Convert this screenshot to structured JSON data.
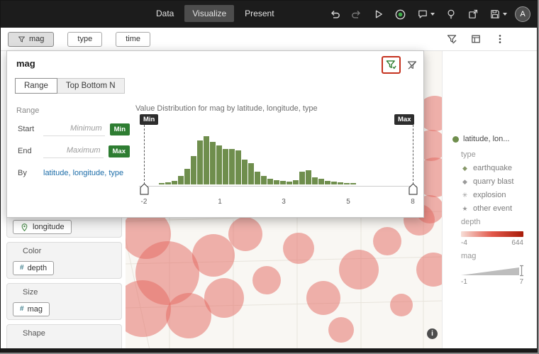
{
  "topbar": {
    "menu": [
      {
        "label": "Data"
      },
      {
        "label": "Visualize"
      },
      {
        "label": "Present"
      }
    ],
    "avatar_label": "A"
  },
  "filter_bar": {
    "chips": [
      {
        "label": "mag"
      },
      {
        "label": "type"
      },
      {
        "label": "time"
      }
    ]
  },
  "popup": {
    "title": "mag",
    "tabs": [
      {
        "label": "Range"
      },
      {
        "label": "Top Bottom N"
      }
    ],
    "section_label": "Range",
    "fields": [
      {
        "label": "Start",
        "placeholder": "Minimum",
        "badge": "Min"
      },
      {
        "label": "End",
        "placeholder": "Maximum",
        "badge": "Max"
      }
    ],
    "by_label": "By",
    "by_value": "latitude, longitude, type",
    "slider_min_tag": "Min",
    "slider_max_tag": "Max"
  },
  "chart_data": {
    "type": "bar",
    "title": "Value Distribution for mag by latitude, longitude, type",
    "xlabel": "mag",
    "ylabel": "frequency (unlabeled)",
    "xlim": [
      -2,
      8
    ],
    "x_ticks": [
      "-2",
      "1",
      "3",
      "5",
      "8"
    ],
    "values": [
      2,
      3,
      5,
      12,
      22,
      40,
      62,
      68,
      60,
      55,
      50,
      50,
      48,
      35,
      30,
      18,
      12,
      8,
      6,
      5,
      4,
      6,
      18,
      20,
      10,
      8,
      5,
      4,
      3,
      2,
      2
    ],
    "values_unit": "relative bar heights estimated from pixels; counts not labeled in UI",
    "bar_color": "#6f8e4d",
    "grid": false,
    "legend_position": "none"
  },
  "left_panel": {
    "geo_pill": "longitude",
    "hash_glyph": "#",
    "sections": [
      {
        "label": "Color",
        "pill": "depth"
      },
      {
        "label": "Size",
        "pill": "mag"
      },
      {
        "label": "Shape",
        "pill": ""
      }
    ]
  },
  "legend": {
    "layer_label": "latitude, lon...",
    "type_header": "type",
    "items": [
      {
        "label": "earthquake",
        "marker": "◆",
        "marker_color": "#87986a"
      },
      {
        "label": "quarry blast",
        "marker": "◆",
        "marker_color": "#9a9a9a"
      },
      {
        "label": "explosion",
        "marker": "✳",
        "marker_color": "#9a9a9a"
      },
      {
        "label": "other event",
        "marker": "★",
        "marker_color": "#9a9a9a"
      }
    ],
    "depth_header": "depth",
    "depth_min": "-4",
    "depth_max": "644",
    "depth_gradient": [
      "#f7ded7",
      "#e2574a",
      "#a81c09"
    ],
    "mag_header": "mag",
    "mag_min": "-1",
    "mag_max": "7"
  },
  "map": {
    "info_glyph": "i"
  },
  "colors": {
    "topbar_bg": "#1c1c1c",
    "accent_green": "#2e7d32",
    "bar_green": "#6f8e4d",
    "annotation_red": "#c5321f",
    "blob_red": "#e46860"
  }
}
